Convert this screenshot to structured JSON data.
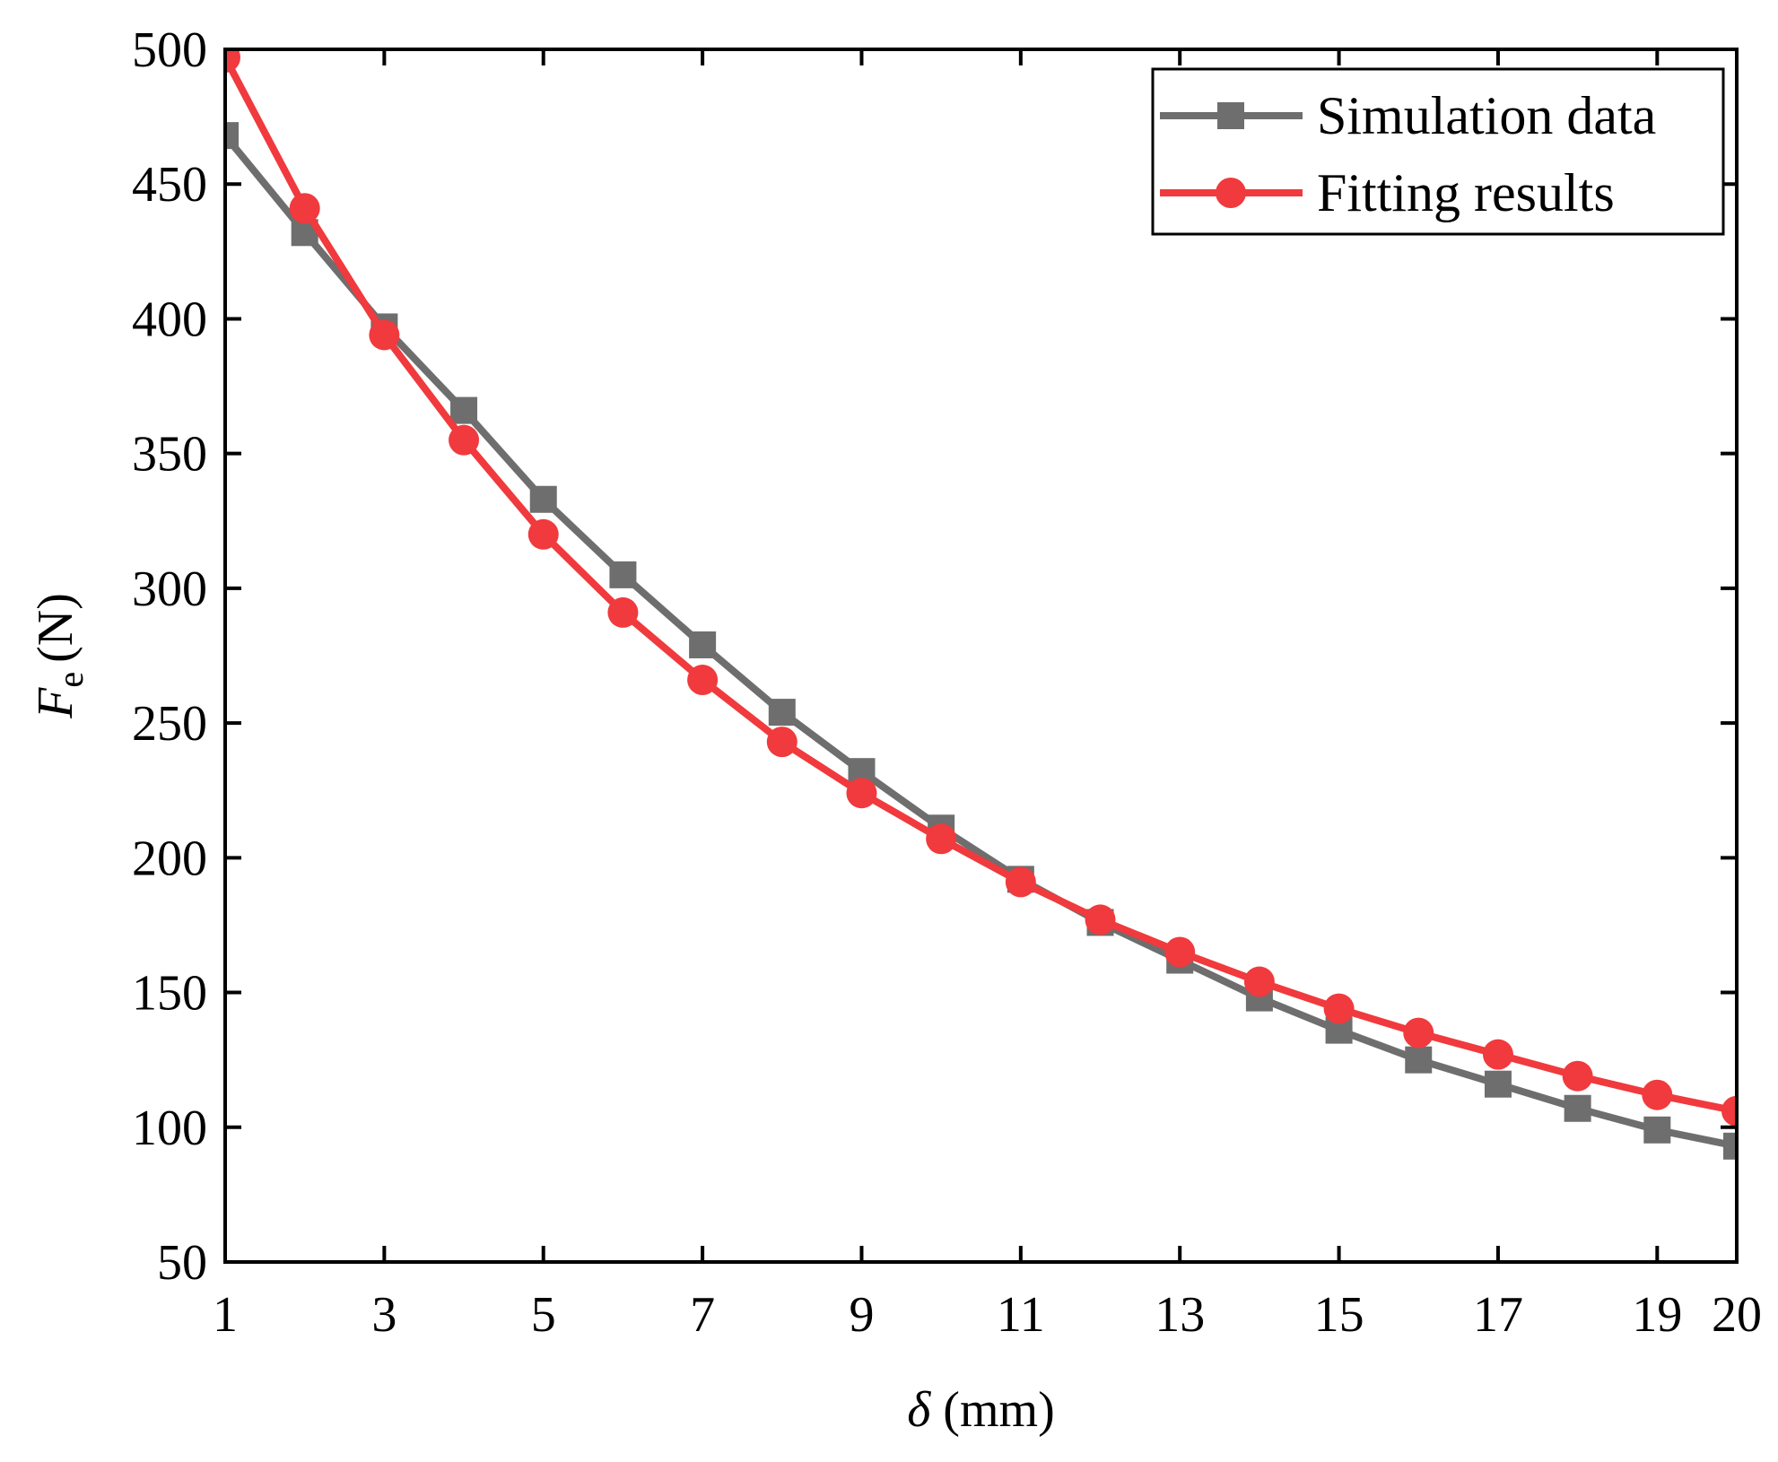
{
  "chart_data": {
    "type": "line",
    "title": "",
    "xlabel": {
      "symbol": "δ",
      "unit": "(mm)"
    },
    "ylabel": {
      "symbol": "F",
      "subscript": "e",
      "unit": "(N)"
    },
    "xlim": [
      1,
      20
    ],
    "ylim": [
      50,
      500
    ],
    "x_ticks": [
      1,
      3,
      5,
      7,
      9,
      11,
      13,
      15,
      17,
      19,
      20
    ],
    "y_ticks": [
      50,
      100,
      150,
      200,
      250,
      300,
      350,
      400,
      450,
      500
    ],
    "grid": false,
    "legend_position": "top-right",
    "x": [
      1,
      2,
      3,
      4,
      5,
      6,
      7,
      8,
      9,
      10,
      11,
      12,
      13,
      14,
      15,
      16,
      17,
      18,
      19,
      20
    ],
    "series": [
      {
        "name": "Simulation data",
        "marker": "square",
        "color": "#6e6e6e",
        "values": [
          468,
          432,
          397,
          366,
          333,
          305,
          279,
          254,
          232,
          211,
          192,
          176,
          162,
          148,
          136,
          125,
          116,
          107,
          99,
          93
        ]
      },
      {
        "name": "Fitting results",
        "marker": "circle",
        "color": "#f03a3d",
        "values": [
          497,
          441,
          394,
          355,
          320,
          291,
          266,
          243,
          224,
          207,
          191,
          177,
          165,
          154,
          144,
          135,
          127,
          119,
          112,
          106
        ]
      }
    ]
  }
}
